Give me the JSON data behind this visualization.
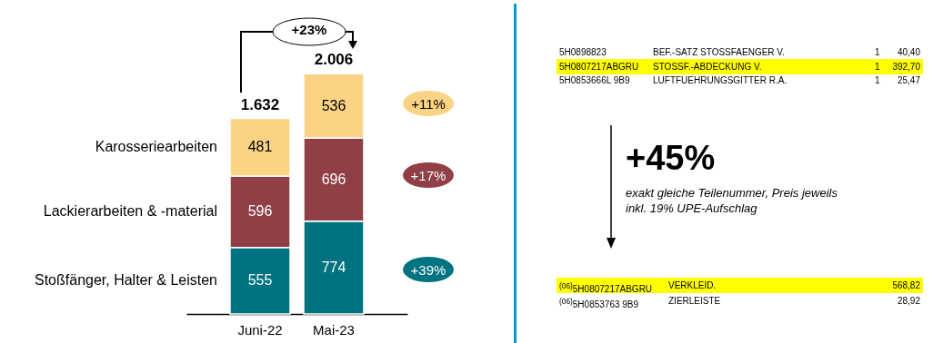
{
  "chart_data": {
    "type": "bar",
    "stacked": true,
    "data_labels": true,
    "categories": [
      "Juni-22",
      "Mai-23"
    ],
    "series": [
      {
        "name": "Stoßfänger, Halter & Leisten",
        "color": "#007380",
        "values": [
          555,
          774
        ]
      },
      {
        "name": "Lackierarbeiten & -material",
        "color": "#8f3f45",
        "values": [
          596,
          696
        ]
      },
      {
        "name": "Karosseriearbeiten",
        "color": "#fad384",
        "values": [
          481,
          536
        ]
      }
    ],
    "totals": [
      "1.632",
      "2.006"
    ],
    "annotations": [
      "+23%",
      "+39%",
      "+17%",
      "+11%",
      "+45%",
      "exakt gleiche Teilenummer, Preis jeweils inkl. 19% UPE-Aufschlag",
      "5H0898823  BEF.-SATZ STOSSFAENGER V.  1  40,40",
      "5H0807217ABGRU  STOSSF.-ABDECKUNG V.  1  392,70",
      "5H0853666L 9B9  LUFTFUEHRUNGSGITTER R.A.  1  25,47",
      "$^{(06)}$5H0807217ABGRU  VERKLEID.  568,82",
      "$^{(06)}$5H0853763 9B9  ZIERLEISTE  28,92"
    ]
  }
}
